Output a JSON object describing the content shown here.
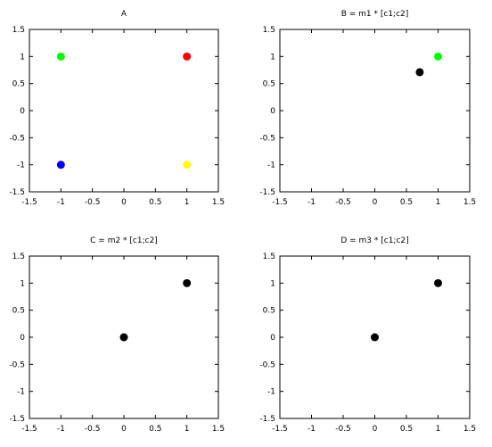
{
  "chart_data": [
    {
      "type": "scatter",
      "title": "A",
      "xlim": [
        -1.5,
        1.5
      ],
      "ylim": [
        -1.5,
        1.5
      ],
      "xticks": [
        "-1.5",
        "-1",
        "-0.5",
        "0",
        "0.5",
        "1",
        "1.5"
      ],
      "yticks": [
        "1.5",
        "1",
        "0.5",
        "0",
        "-0.5",
        "-1",
        "-1.5"
      ],
      "points": [
        {
          "x": -1,
          "y": 1,
          "color": "#00ff00"
        },
        {
          "x": 1,
          "y": 1,
          "color": "#ff0000"
        },
        {
          "x": -1,
          "y": -1,
          "color": "#0000ff"
        },
        {
          "x": 1,
          "y": -1,
          "color": "#ffff00"
        }
      ]
    },
    {
      "type": "scatter",
      "title": "B = m1 * [c1;c2]",
      "xlim": [
        -1.5,
        1.5
      ],
      "ylim": [
        -1.5,
        1.5
      ],
      "xticks": [
        "-1.5",
        "-1",
        "-0.5",
        "0",
        "0.5",
        "1",
        "1.5"
      ],
      "yticks": [
        "1.5",
        "1",
        "0.5",
        "0",
        "-0.5",
        "-1",
        "-1.5"
      ],
      "points": [
        {
          "x": 1,
          "y": 1,
          "color": "#00ff00"
        },
        {
          "x": 0.71,
          "y": 0.71,
          "color": "#000000"
        }
      ]
    },
    {
      "type": "scatter",
      "title": "C = m2 * [c1;c2]",
      "xlim": [
        -1.5,
        1.5
      ],
      "ylim": [
        -1.5,
        1.5
      ],
      "xticks": [
        "-1.5",
        "-1",
        "-0.5",
        "0",
        "0.5",
        "1",
        "1.5"
      ],
      "yticks": [
        "1.5",
        "1",
        "0.5",
        "0",
        "-0.5",
        "-1",
        "-1.5"
      ],
      "points": [
        {
          "x": 1,
          "y": 1,
          "color": "#000000"
        },
        {
          "x": 0,
          "y": 0,
          "color": "#000000"
        }
      ]
    },
    {
      "type": "scatter",
      "title": "D = m3 * [c1;c2]",
      "xlim": [
        -1.5,
        1.5
      ],
      "ylim": [
        -1.5,
        1.5
      ],
      "xticks": [
        "-1.5",
        "-1",
        "-0.5",
        "0",
        "0.5",
        "1",
        "1.5"
      ],
      "yticks": [
        "1.5",
        "1",
        "0.5",
        "0",
        "-0.5",
        "-1",
        "-1.5"
      ],
      "points": [
        {
          "x": 1,
          "y": 1,
          "color": "#000000"
        },
        {
          "x": 0,
          "y": 0,
          "color": "#000000"
        }
      ]
    }
  ]
}
